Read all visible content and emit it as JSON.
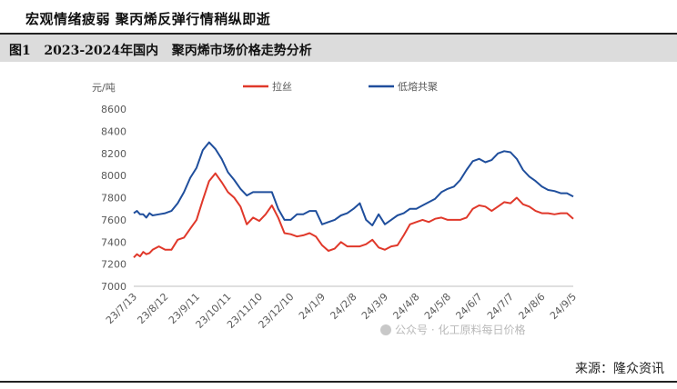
{
  "headline": "宏观情绪疲弱  聚丙烯反弹行情稍纵即逝",
  "figure_title": "图1   2023-2024年国内   聚丙烯市场价格走势分析",
  "source": "来源：隆众资讯",
  "watermark": "公众号 · 化工原料每日价格",
  "chart_data": {
    "type": "line",
    "ylabel": "元/吨",
    "ylim": [
      7000,
      8600
    ],
    "yticks": [
      7000,
      7200,
      7400,
      7600,
      7800,
      8000,
      8200,
      8400,
      8600
    ],
    "xticks": [
      "23/7/13",
      "23/8/12",
      "23/9/11",
      "23/10/11",
      "23/11/10",
      "23/12/10",
      "24/1/9",
      "24/2/8",
      "24/3/9",
      "24/4/8",
      "24/5/8",
      "24/6/7",
      "24/7/7",
      "24/8/6",
      "24/9/5"
    ],
    "legend_position": "top",
    "series": [
      {
        "name": "拉丝",
        "color": "#e0382a",
        "x": [
          0,
          1,
          2,
          3,
          4,
          5,
          6,
          8,
          10,
          12,
          14,
          16,
          18,
          20,
          22,
          24,
          26,
          28,
          30,
          32,
          34,
          36,
          38,
          40,
          42,
          44,
          46,
          48,
          50,
          52,
          54,
          56,
          58,
          60,
          62,
          64,
          66,
          68,
          70,
          72,
          74,
          76,
          78,
          80,
          82,
          84,
          86,
          88,
          90,
          92,
          94,
          96,
          98,
          100,
          102,
          104,
          106,
          108,
          110,
          112,
          114,
          116,
          118,
          120,
          122,
          124,
          126,
          128,
          130,
          132,
          134,
          136,
          138,
          140
        ],
        "y": [
          7260,
          7290,
          7270,
          7310,
          7290,
          7300,
          7330,
          7360,
          7330,
          7330,
          7420,
          7440,
          7520,
          7600,
          7780,
          7950,
          8020,
          7940,
          7850,
          7800,
          7720,
          7560,
          7620,
          7590,
          7650,
          7730,
          7620,
          7480,
          7470,
          7450,
          7460,
          7480,
          7450,
          7370,
          7320,
          7340,
          7400,
          7360,
          7360,
          7360,
          7380,
          7420,
          7350,
          7330,
          7360,
          7370,
          7460,
          7560,
          7580,
          7600,
          7580,
          7610,
          7620,
          7600,
          7600,
          7600,
          7620,
          7700,
          7730,
          7720,
          7680,
          7720,
          7760,
          7750,
          7800,
          7740,
          7720,
          7680,
          7660,
          7660,
          7650,
          7660,
          7660,
          7610
        ]
      },
      {
        "name": "低熔共聚",
        "color": "#1f4e9c",
        "x": [
          0,
          1,
          2,
          3,
          4,
          5,
          6,
          8,
          10,
          12,
          14,
          16,
          18,
          20,
          22,
          24,
          26,
          28,
          30,
          32,
          34,
          36,
          38,
          40,
          42,
          44,
          46,
          48,
          50,
          52,
          54,
          56,
          58,
          60,
          62,
          64,
          66,
          68,
          70,
          72,
          74,
          76,
          78,
          80,
          82,
          84,
          86,
          88,
          90,
          92,
          94,
          96,
          98,
          100,
          102,
          104,
          106,
          108,
          110,
          112,
          114,
          116,
          118,
          120,
          122,
          124,
          126,
          128,
          130,
          132,
          134,
          136,
          138,
          140
        ],
        "y": [
          7660,
          7680,
          7650,
          7650,
          7620,
          7660,
          7640,
          7650,
          7660,
          7680,
          7750,
          7850,
          7980,
          8070,
          8230,
          8300,
          8240,
          8150,
          8030,
          7960,
          7880,
          7820,
          7850,
          7850,
          7850,
          7850,
          7700,
          7600,
          7600,
          7650,
          7650,
          7680,
          7680,
          7560,
          7580,
          7600,
          7640,
          7660,
          7700,
          7750,
          7600,
          7550,
          7650,
          7560,
          7600,
          7640,
          7660,
          7700,
          7700,
          7730,
          7760,
          7790,
          7850,
          7880,
          7900,
          7960,
          8050,
          8130,
          8150,
          8120,
          8140,
          8200,
          8220,
          8210,
          8150,
          8050,
          7990,
          7950,
          7900,
          7870,
          7860,
          7840,
          7840,
          7810
        ]
      }
    ]
  }
}
